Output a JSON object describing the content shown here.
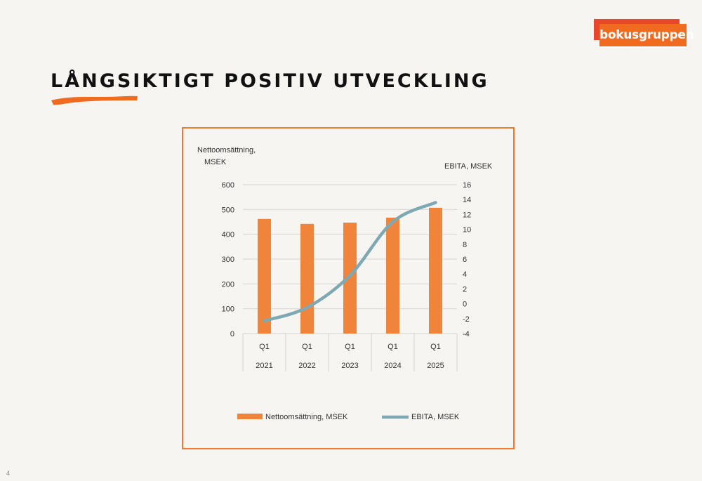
{
  "brand": {
    "name": "bokusgruppen",
    "color": "#f06a1f",
    "shadow_color": "#e8472b"
  },
  "page": {
    "title": "LÅNGSIKTIGT POSITIV UTVECKLING",
    "number": "4",
    "accent_color": "#f06a1f"
  },
  "chart_data": {
    "type": "bar",
    "categories": [
      {
        "quarter": "Q1",
        "year": "2021"
      },
      {
        "quarter": "Q1",
        "year": "2022"
      },
      {
        "quarter": "Q1",
        "year": "2023"
      },
      {
        "quarter": "Q1",
        "year": "2024"
      },
      {
        "quarter": "Q1",
        "year": "2025"
      }
    ],
    "series": [
      {
        "name": "Nettoomsättning, MSEK",
        "type": "bar",
        "axis": "left",
        "color": "#f0843a",
        "values": [
          462,
          442,
          447,
          467,
          507
        ]
      },
      {
        "name": "EBITA, MSEK",
        "type": "line",
        "axis": "right",
        "color": "#7ea9b3",
        "values": [
          -2.3,
          -0.5,
          3.8,
          11,
          13.6
        ]
      }
    ],
    "ylabel_left": [
      "Nettoomsättning,",
      "MSEK"
    ],
    "ylabel_right": "EBITA, MSEK",
    "ylim_left": [
      0,
      600
    ],
    "yticks_left": [
      0,
      100,
      200,
      300,
      400,
      500,
      600
    ],
    "ylim_right": [
      -4,
      16
    ],
    "yticks_right": [
      -4,
      -2,
      0,
      2,
      4,
      6,
      8,
      10,
      12,
      14,
      16
    ],
    "grid": true,
    "legend_position": "bottom",
    "frame_color": "#f07a2a"
  }
}
